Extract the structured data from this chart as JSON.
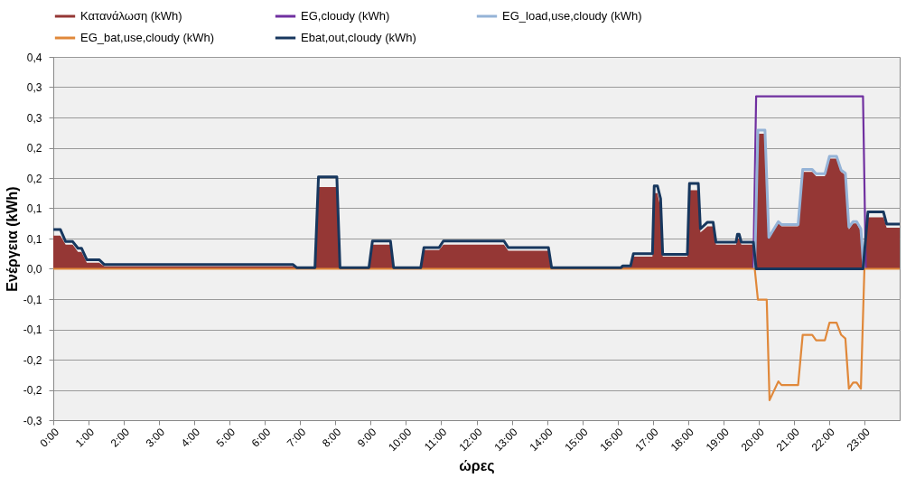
{
  "chart_data": {
    "type": "line",
    "xlabel": "ώρες",
    "ylabel": "Ενέργεια (kWh)",
    "xlim": [
      0,
      24
    ],
    "xticks": [
      {
        "value": 0,
        "label": "0:00"
      },
      {
        "value": 1,
        "label": "1:00"
      },
      {
        "value": 2,
        "label": "2:00"
      },
      {
        "value": 3,
        "label": "3:00"
      },
      {
        "value": 4,
        "label": "4:00"
      },
      {
        "value": 5,
        "label": "5:00"
      },
      {
        "value": 6,
        "label": "6:00"
      },
      {
        "value": 7,
        "label": "7:00"
      },
      {
        "value": 8,
        "label": "8:00"
      },
      {
        "value": 9,
        "label": "9:00"
      },
      {
        "value": 10,
        "label": "10:00"
      },
      {
        "value": 11,
        "label": "11:00"
      },
      {
        "value": 12,
        "label": "12:00"
      },
      {
        "value": 13,
        "label": "13:00"
      },
      {
        "value": 14,
        "label": "14:00"
      },
      {
        "value": 15,
        "label": "15:00"
      },
      {
        "value": 16,
        "label": "16:00"
      },
      {
        "value": 17,
        "label": "17:00"
      },
      {
        "value": 18,
        "label": "18:00"
      },
      {
        "value": 19,
        "label": "19:00"
      },
      {
        "value": 20,
        "label": "20:00"
      },
      {
        "value": 21,
        "label": "21:00"
      },
      {
        "value": 22,
        "label": "22:00"
      },
      {
        "value": 23,
        "label": "23:00"
      }
    ],
    "ylim": [
      -0.25,
      0.35
    ],
    "yticks": [
      {
        "value": -0.25,
        "label": "-0,3"
      },
      {
        "value": -0.2,
        "label": "-0,2"
      },
      {
        "value": -0.15,
        "label": "-0,2"
      },
      {
        "value": -0.1,
        "label": "-0,1"
      },
      {
        "value": -0.05,
        "label": "-0,1"
      },
      {
        "value": 0,
        "label": "0,0"
      },
      {
        "value": 0.05,
        "label": "0,1"
      },
      {
        "value": 0.1,
        "label": "0,1"
      },
      {
        "value": 0.15,
        "label": "0,2"
      },
      {
        "value": 0.2,
        "label": "0,2"
      },
      {
        "value": 0.25,
        "label": "0,3"
      },
      {
        "value": 0.3,
        "label": "0,3"
      },
      {
        "value": 0.35,
        "label": "0,4"
      }
    ],
    "grid": "y",
    "legend": "top",
    "series": [
      {
        "name": "Κατανάλωση (kWh)",
        "type": "area",
        "color": "#953735",
        "x": [
          0,
          0.2,
          0.35,
          0.55,
          0.7,
          0.8,
          0.95,
          1.3,
          1.45,
          6.8,
          6.9,
          7.42,
          7.52,
          8.04,
          8.13,
          8.95,
          9.05,
          9.56,
          9.65,
          10.42,
          10.51,
          10.94,
          11.06,
          12.78,
          12.9,
          14.04,
          14.13,
          16.1,
          16.15,
          16.37,
          16.45,
          16.99,
          17.04,
          17.13,
          17.22,
          17.28,
          17.98,
          18.04,
          18.29,
          18.35,
          18.55,
          18.71,
          18.79,
          19.36,
          19.4,
          19.45,
          19.51,
          19.85,
          19.98,
          20.18,
          20.29,
          20.56,
          20.65,
          21.12,
          21.25,
          21.52,
          21.63,
          21.88,
          22.01,
          22.21,
          22.34,
          22.46,
          22.56,
          22.68,
          22.78,
          22.9,
          22.98,
          23.1,
          23.54,
          23.63,
          24
        ],
        "values": [
          0.055,
          0.055,
          0.04,
          0.04,
          0.028,
          0.028,
          0.01,
          0.01,
          0.004,
          0.004,
          0.001,
          0.001,
          0.135,
          0.135,
          0.001,
          0.001,
          0.04,
          0.04,
          0.001,
          0.001,
          0.031,
          0.031,
          0.04,
          0.04,
          0.03,
          0.03,
          0.001,
          0.001,
          0.003,
          0.003,
          0.02,
          0.02,
          0.125,
          0.125,
          0.1,
          0.02,
          0.02,
          0.13,
          0.13,
          0.06,
          0.07,
          0.07,
          0.04,
          0.04,
          0.05,
          0.05,
          0.04,
          0.04,
          0.223,
          0.223,
          0.05,
          0.075,
          0.07,
          0.07,
          0.16,
          0.16,
          0.153,
          0.153,
          0.182,
          0.182,
          0.16,
          0.155,
          0.065,
          0.075,
          0.075,
          0.062,
          0.01,
          0.085,
          0.085,
          0.068,
          0.068
        ]
      },
      {
        "name": "EG,cloudy (kWh)",
        "type": "line",
        "color": "#7030a0",
        "x": [
          19.85,
          19.93,
          22.96,
          23.04
        ],
        "values": [
          0,
          0.285,
          0.285,
          0
        ]
      },
      {
        "name": "EG_load,use,cloudy (kWh)",
        "type": "line",
        "color": "#95b3d7",
        "x": [
          19.89,
          19.98,
          20.18,
          20.29,
          20.56,
          20.65,
          21.12,
          21.25,
          21.52,
          21.63,
          21.88,
          22.01,
          22.21,
          22.34,
          22.46,
          22.56,
          22.68,
          22.78,
          22.9,
          22.98
        ],
        "values": [
          0,
          0.229,
          0.229,
          0.052,
          0.078,
          0.073,
          0.073,
          0.164,
          0.164,
          0.157,
          0.157,
          0.186,
          0.186,
          0.163,
          0.158,
          0.069,
          0.078,
          0.078,
          0.066,
          0
        ]
      },
      {
        "name": "EG_bat,use,cloudy (kWh)",
        "type": "line",
        "color": "#e0883a",
        "x": [
          0,
          19.89,
          19.98,
          20.23,
          20.31,
          20.56,
          20.65,
          21.12,
          21.25,
          21.52,
          21.63,
          21.88,
          22.01,
          22.21,
          22.34,
          22.46,
          22.56,
          22.68,
          22.78,
          22.9,
          23.0,
          24
        ],
        "values": [
          0,
          0,
          -0.051,
          -0.051,
          -0.217,
          -0.186,
          -0.192,
          -0.192,
          -0.109,
          -0.109,
          -0.118,
          -0.118,
          -0.089,
          -0.089,
          -0.109,
          -0.115,
          -0.198,
          -0.188,
          -0.188,
          -0.198,
          0,
          0
        ]
      },
      {
        "name": "Ebat,out,cloudy (kWh)",
        "type": "line",
        "color": "#17375e",
        "x": [
          0,
          0.2,
          0.35,
          0.55,
          0.7,
          0.8,
          0.95,
          1.3,
          1.45,
          6.8,
          6.9,
          7.42,
          7.52,
          8.04,
          8.13,
          8.95,
          9.05,
          9.56,
          9.65,
          10.42,
          10.51,
          10.94,
          11.06,
          12.78,
          12.9,
          14.04,
          14.13,
          16.1,
          16.15,
          16.37,
          16.45,
          16.99,
          17.04,
          17.13,
          17.22,
          17.28,
          17.98,
          18.04,
          18.29,
          18.35,
          18.55,
          18.71,
          18.79,
          19.36,
          19.4,
          19.45,
          19.51,
          19.85,
          19.93,
          22.96,
          23.1,
          23.54,
          23.63,
          24
        ],
        "values": [
          0.065,
          0.065,
          0.045,
          0.045,
          0.034,
          0.034,
          0.015,
          0.015,
          0.007,
          0.007,
          0.002,
          0.002,
          0.152,
          0.152,
          0.002,
          0.002,
          0.046,
          0.046,
          0.002,
          0.002,
          0.035,
          0.035,
          0.046,
          0.046,
          0.035,
          0.035,
          0.002,
          0.002,
          0.005,
          0.005,
          0.025,
          0.025,
          0.137,
          0.137,
          0.116,
          0.024,
          0.024,
          0.141,
          0.141,
          0.066,
          0.077,
          0.077,
          0.044,
          0.044,
          0.057,
          0.057,
          0.044,
          0.044,
          0,
          0,
          0.094,
          0.094,
          0.074,
          0.074
        ]
      }
    ]
  }
}
